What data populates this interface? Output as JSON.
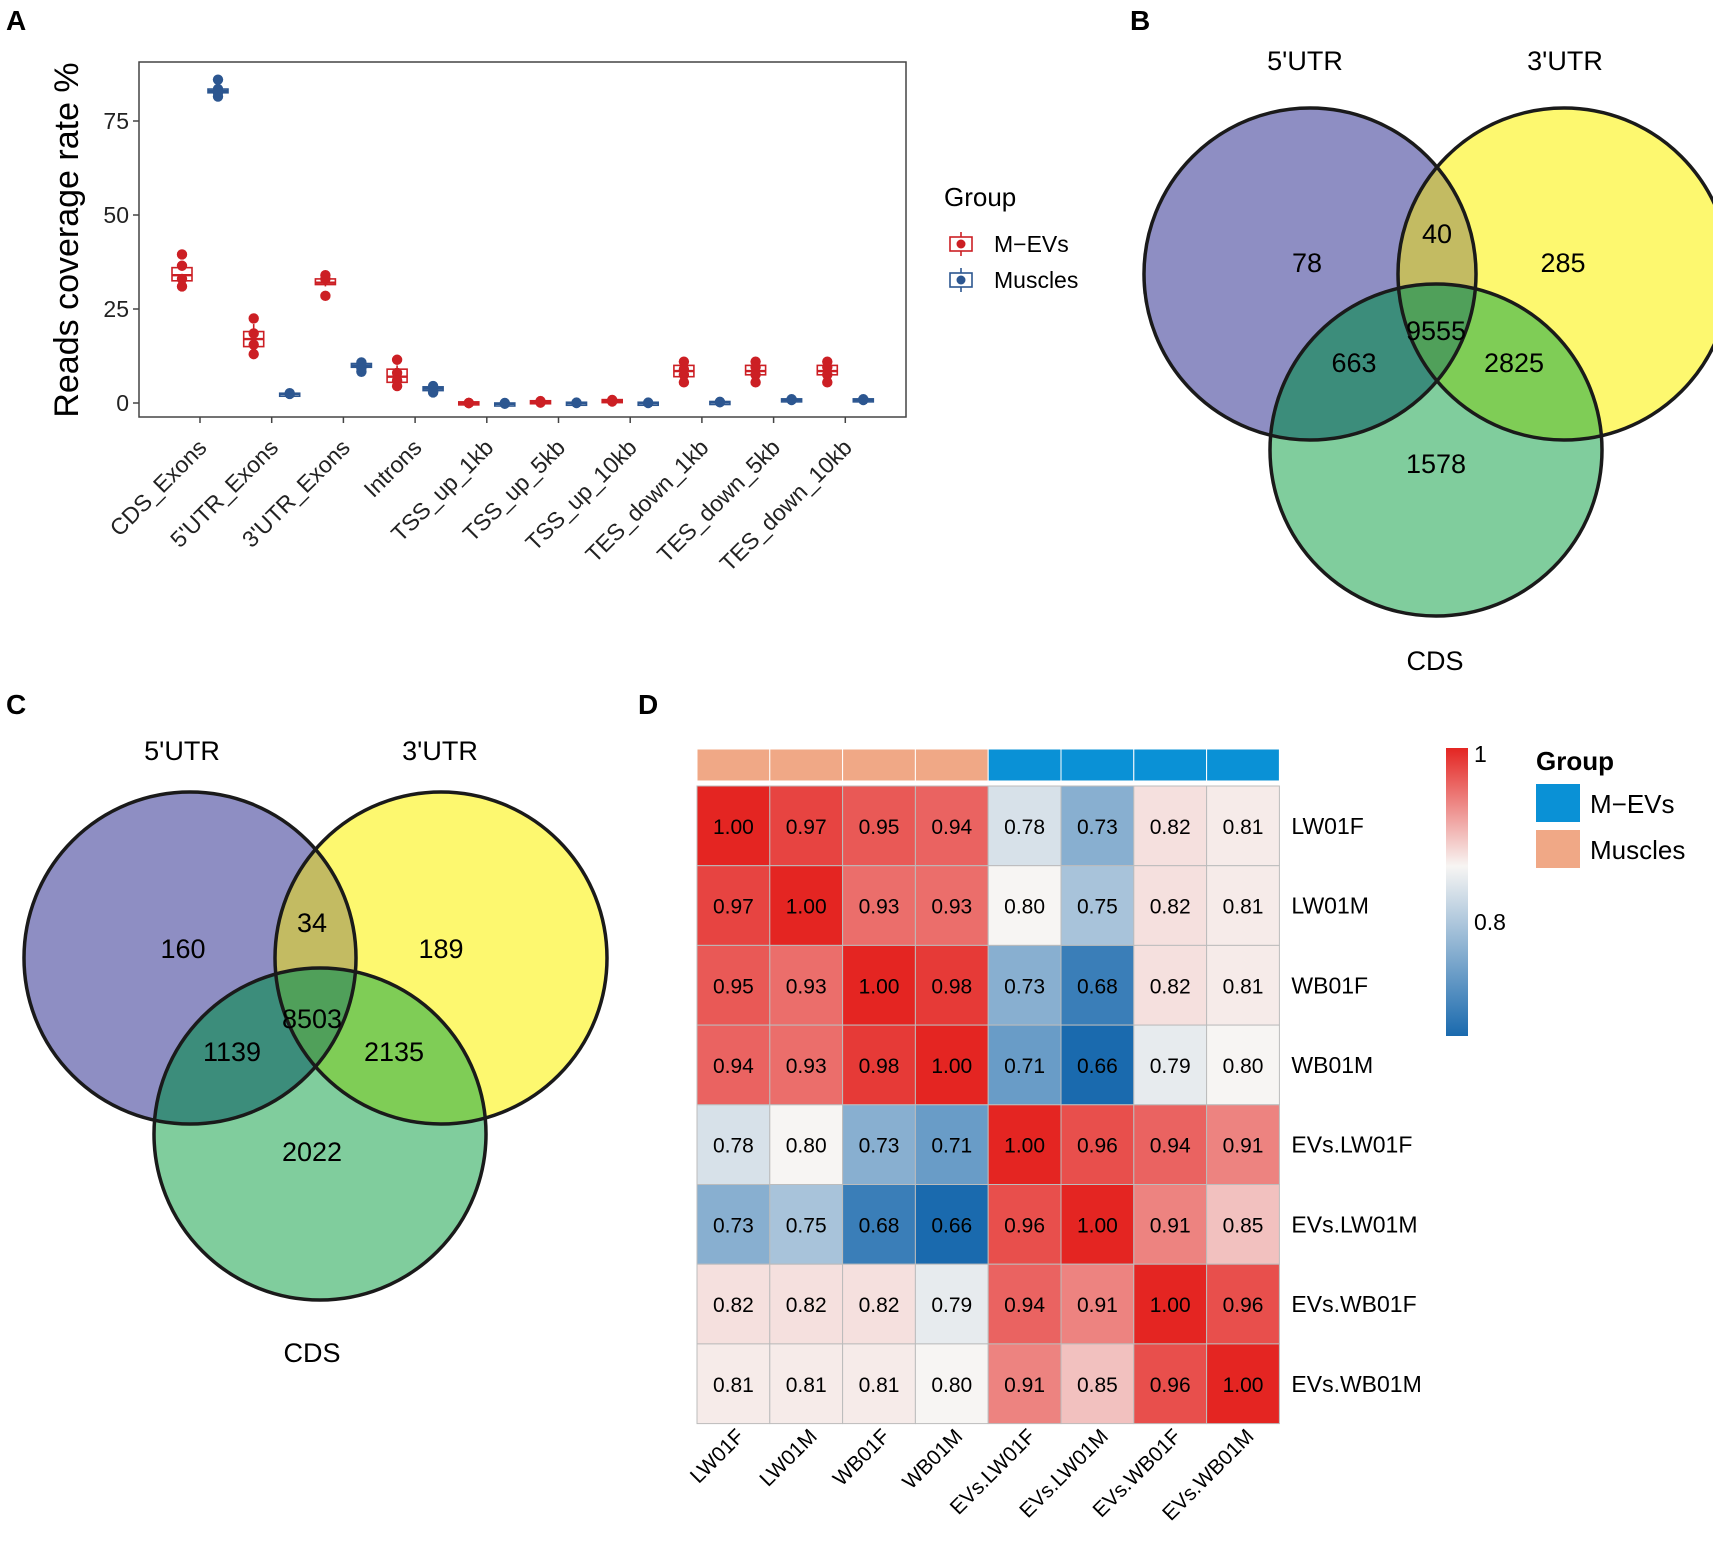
{
  "panels": {
    "a": "A",
    "b": "B",
    "c": "C",
    "d": "D"
  },
  "colors": {
    "mevs_box": "#cc1f24",
    "muscles_box": "#2c5690",
    "venn_5utr": "#8e8ec3",
    "venn_3utr": "#fdf86f",
    "venn_cds": "#80cd9d",
    "venn_5utr_3utr": "#c3bb62",
    "venn_5utr_cds": "#3c8d7b",
    "venn_3utr_cds": "#7fcd56",
    "venn_all": "#50a05a",
    "group_mevs": "#0a91d6",
    "group_muscles": "#f0a886",
    "scale_high": "#e42522",
    "scale_mid": "#f7f5f3",
    "scale_low": "#1a6aae"
  },
  "chart_data": [
    {
      "id": "A",
      "type": "box",
      "title": "",
      "ylabel": "Reads coverage rate %",
      "xlabel": "",
      "ylim": [
        -3,
        90
      ],
      "yticks": [
        0,
        25,
        50,
        75
      ],
      "categories": [
        "CDS_Exons",
        "5'UTR_Exons",
        "3'UTR_Exons",
        "Introns",
        "TSS_up_1kb",
        "TSS_up_5kb",
        "TSS_up_10kb",
        "TES_down_1kb",
        "TES_down_5kb",
        "TES_down_10kb"
      ],
      "legend": {
        "title": "Group",
        "placement": "right",
        "items": [
          "M−EVs",
          "Muscles"
        ]
      },
      "series": [
        {
          "name": "M−EVs",
          "color": "#cc1f24",
          "boxes": [
            {
              "median": 34,
              "q1": 32.5,
              "q3": 36,
              "min": 30.5,
              "max": 37.5,
              "points": [
                39.5,
                36.5,
                33,
                31
              ]
            },
            {
              "median": 17,
              "q1": 15,
              "q3": 19,
              "min": 13,
              "max": 21,
              "points": [
                22.5,
                18.5,
                15.5,
                13
              ]
            },
            {
              "median": 32,
              "q1": 31.5,
              "q3": 33,
              "min": 31,
              "max": 33.5,
              "points": [
                34,
                33,
                28.5
              ]
            },
            {
              "median": 7,
              "q1": 5.5,
              "q3": 9,
              "min": 4.5,
              "max": 10,
              "points": [
                11.5,
                8,
                6,
                4.5
              ]
            },
            {
              "median": 0,
              "q1": -0.3,
              "q3": 0.3,
              "min": -0.5,
              "max": 0.5,
              "points": [
                0,
                0,
                0
              ]
            },
            {
              "median": 0.3,
              "q1": 0,
              "q3": 0.6,
              "min": 0,
              "max": 0.8,
              "points": [
                0.3,
                0.5,
                0.1
              ]
            },
            {
              "median": 0.6,
              "q1": 0.3,
              "q3": 0.9,
              "min": 0.2,
              "max": 1,
              "points": [
                0.6,
                0.8,
                0.4
              ]
            },
            {
              "median": 8.5,
              "q1": 7,
              "q3": 10,
              "min": 6.5,
              "max": 10.5,
              "points": [
                11,
                9,
                7.5,
                5.5
              ]
            },
            {
              "median": 8.5,
              "q1": 7.5,
              "q3": 10,
              "min": 6.5,
              "max": 10.5,
              "points": [
                11,
                9.5,
                7.5,
                5.5
              ]
            },
            {
              "median": 8.5,
              "q1": 7.5,
              "q3": 10,
              "min": 6.5,
              "max": 10.5,
              "points": [
                11,
                9.5,
                7.5,
                5.5
              ]
            }
          ]
        },
        {
          "name": "Muscles",
          "color": "#2c5690",
          "boxes": [
            {
              "median": 83,
              "q1": 82.5,
              "q3": 83.5,
              "min": 82,
              "max": 84.5,
              "points": [
                86,
                83.5,
                82.5,
                81.5
              ]
            },
            {
              "median": 2.4,
              "q1": 2.2,
              "q3": 2.6,
              "min": 2.1,
              "max": 2.7,
              "points": [
                2.4,
                2.6
              ]
            },
            {
              "median": 10,
              "q1": 9.5,
              "q3": 10.5,
              "min": 9,
              "max": 11,
              "points": [
                10.8,
                9.2,
                8.3
              ]
            },
            {
              "median": 3.8,
              "q1": 3.3,
              "q3": 4.3,
              "min": 2.8,
              "max": 4.8,
              "points": [
                4.5,
                3,
                2.8
              ]
            },
            {
              "median": -0.2,
              "q1": -0.4,
              "q3": 0,
              "min": -0.5,
              "max": 0.1,
              "points": [
                -0.2,
                0
              ]
            },
            {
              "median": 0,
              "q1": -0.2,
              "q3": 0.2,
              "min": -0.3,
              "max": 0.3,
              "points": [
                0,
                0.1
              ]
            },
            {
              "median": 0,
              "q1": -0.2,
              "q3": 0.2,
              "min": -0.3,
              "max": 0.3,
              "points": [
                0,
                0.1
              ]
            },
            {
              "median": 0.2,
              "q1": 0,
              "q3": 0.4,
              "min": -0.1,
              "max": 0.5,
              "points": [
                0.2,
                0.3
              ]
            },
            {
              "median": 0.8,
              "q1": 0.5,
              "q3": 1.1,
              "min": 0.3,
              "max": 1.3,
              "points": [
                0.8,
                1
              ]
            },
            {
              "median": 0.8,
              "q1": 0.5,
              "q3": 1.1,
              "min": 0.3,
              "max": 1.3,
              "points": [
                0.8,
                1
              ]
            }
          ]
        }
      ]
    },
    {
      "id": "B",
      "type": "venn",
      "sets": [
        "5'UTR",
        "3'UTR",
        "CDS"
      ],
      "regions": {
        "only_5utr": "78",
        "only_3utr": "285",
        "only_cds": "1578",
        "utr5_utr3": "40",
        "utr5_cds": "663",
        "utr3_cds": "2825",
        "all": "9555"
      }
    },
    {
      "id": "C",
      "type": "venn",
      "sets": [
        "5'UTR",
        "3'UTR",
        "CDS"
      ],
      "regions": {
        "only_5utr": "160",
        "only_3utr": "189",
        "only_cds": "2022",
        "utr5_utr3": "34",
        "utr5_cds": "1139",
        "utr3_cds": "2135",
        "all": "8503"
      }
    },
    {
      "id": "D",
      "type": "heatmap",
      "rows": [
        "LW01F",
        "LW01M",
        "WB01F",
        "WB01M",
        "EVs.LW01F",
        "EVs.LW01M",
        "EVs.WB01F",
        "EVs.WB01M"
      ],
      "cols": [
        "LW01F",
        "LW01M",
        "WB01F",
        "WB01M",
        "EVs.LW01F",
        "EVs.LW01M",
        "EVs.WB01F",
        "EVs.WB01M"
      ],
      "col_groups": [
        "Muscles",
        "Muscles",
        "Muscles",
        "Muscles",
        "M−EVs",
        "M−EVs",
        "M−EVs",
        "M−EVs"
      ],
      "values": [
        [
          "1.00",
          "0.97",
          "0.95",
          "0.94",
          "0.78",
          "0.73",
          "0.82",
          "0.81"
        ],
        [
          "0.97",
          "1.00",
          "0.93",
          "0.93",
          "0.80",
          "0.75",
          "0.82",
          "0.81"
        ],
        [
          "0.95",
          "0.93",
          "1.00",
          "0.98",
          "0.73",
          "0.68",
          "0.82",
          "0.81"
        ],
        [
          "0.94",
          "0.93",
          "0.98",
          "1.00",
          "0.71",
          "0.66",
          "0.79",
          "0.80"
        ],
        [
          "0.78",
          "0.80",
          "0.73",
          "0.71",
          "1.00",
          "0.96",
          "0.94",
          "0.91"
        ],
        [
          "0.73",
          "0.75",
          "0.68",
          "0.66",
          "0.96",
          "1.00",
          "0.91",
          "0.85"
        ],
        [
          "0.82",
          "0.82",
          "0.82",
          "0.79",
          "0.94",
          "0.91",
          "1.00",
          "0.96"
        ],
        [
          "0.81",
          "0.81",
          "0.81",
          "0.80",
          "0.91",
          "0.85",
          "0.96",
          "1.00"
        ]
      ],
      "scale": {
        "min": 0.66,
        "mid": 0.8,
        "max": 1.0,
        "labels": [
          "1",
          "0.8"
        ]
      },
      "legend": {
        "title": "Group",
        "items": [
          "M−EVs",
          "Muscles"
        ]
      }
    }
  ]
}
